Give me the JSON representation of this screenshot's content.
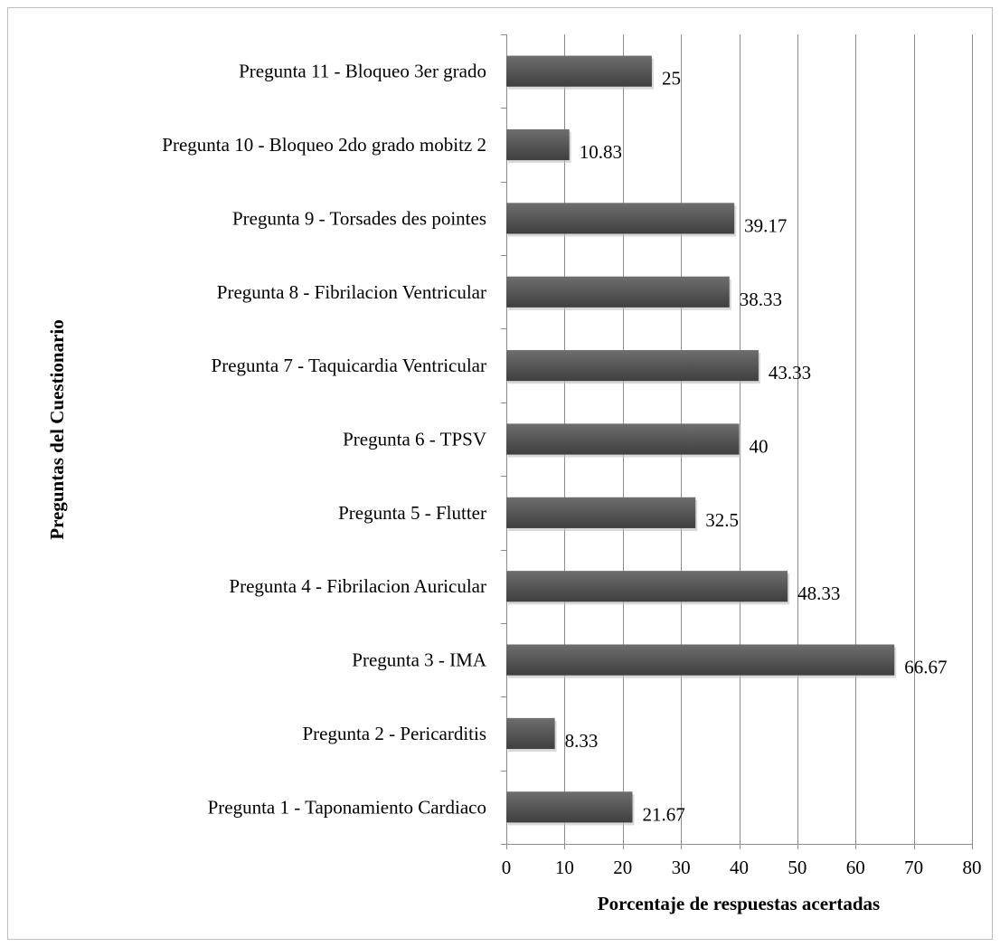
{
  "chart_data": {
    "type": "bar",
    "orientation": "horizontal",
    "title": "",
    "xlabel": "Porcentaje de respuestas acertadas",
    "ylabel": "Preguntas del Cuestionario",
    "categories": [
      "Pregunta 1 - Taponamiento Cardiaco",
      "Pregunta 2 - Pericarditis",
      "Pregunta 3 - IMA",
      "Pregunta 4 - Fibrilacion Auricular",
      "Pregunta 5 - Flutter",
      "Pregunta 6 - TPSV",
      "Pregunta 7 - Taquicardia Ventricular",
      "Pregunta 8 - Fibrilacion Ventricular",
      "Pregunta 9 - Torsades des pointes",
      "Pregunta 10 - Bloqueo 2do grado mobitz 2",
      "Pregunta 11 - Bloqueo 3er grado"
    ],
    "values": [
      21.67,
      8.33,
      66.67,
      48.33,
      32.5,
      40,
      43.33,
      38.33,
      39.17,
      10.83,
      25
    ],
    "data_labels": [
      "21.67",
      "8.33",
      "66.67",
      "48.33",
      "32.5",
      "40",
      "43.33",
      "38.33",
      "39.17",
      "10.83",
      "25"
    ],
    "xlim": [
      0,
      80
    ],
    "x_ticks": [
      0,
      10,
      20,
      30,
      40,
      50,
      60,
      70,
      80
    ],
    "x_tick_labels": [
      "0",
      "10",
      "20",
      "30",
      "40",
      "50",
      "60",
      "70",
      "80"
    ],
    "grid": "vertical",
    "legend": "none",
    "colors": {
      "bar_top": "#6e6e6e",
      "bar_bottom": "#3f3f3f",
      "grid": "#8c8c8c",
      "frame": "#bdbdbd"
    }
  }
}
